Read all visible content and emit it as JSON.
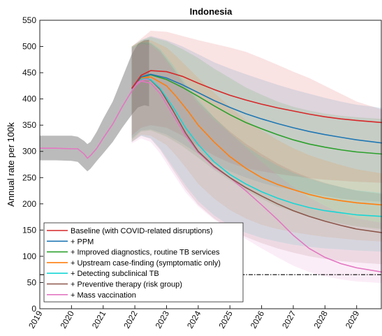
{
  "chart_data": {
    "type": "line",
    "title": "Indonesia",
    "xlabel": "",
    "ylabel": "Annual rate per 100k",
    "xlim": [
      2019,
      2029.8
    ],
    "ylim": [
      0,
      550
    ],
    "x_ticks": [
      "2019",
      "2020",
      "2021",
      "2022",
      "2023",
      "2024",
      "2025",
      "2026",
      "2027",
      "2028",
      "2029"
    ],
    "y_ticks": [
      0,
      50,
      100,
      150,
      200,
      250,
      300,
      350,
      400,
      450,
      500,
      550
    ],
    "grid": false,
    "legend_position": "bottom-left",
    "reference_line": {
      "y": 65,
      "style": "dash-dot",
      "color": "#000000"
    },
    "pre_period": {
      "x": [
        2019.0,
        2019.5,
        2020.0,
        2020.2,
        2020.4,
        2020.5,
        2020.6,
        2020.8,
        2021.0,
        2021.3,
        2021.6,
        2021.9,
        2022.1,
        2022.3,
        2022.45
      ],
      "y": [
        306,
        306,
        305,
        305,
        295,
        287,
        292,
        306,
        325,
        352,
        385,
        415,
        432,
        437,
        436
      ],
      "lower": [
        283,
        283,
        282,
        280,
        268,
        262,
        267,
        282,
        296,
        318,
        345,
        370,
        384,
        388,
        386
      ],
      "upper": [
        330,
        330,
        330,
        328,
        320,
        314,
        318,
        338,
        362,
        395,
        440,
        485,
        505,
        512,
        513
      ],
      "color": "#555555"
    },
    "series": [
      {
        "name": "Baseline (with COVID-related disruptions)",
        "color": "#d62728",
        "x": [
          2021.9,
          2022.2,
          2022.5,
          2023,
          2023.5,
          2024,
          2024.5,
          2025,
          2025.5,
          2026,
          2026.5,
          2027,
          2027.5,
          2028,
          2028.5,
          2029,
          2029.8
        ],
        "y": [
          420,
          445,
          454,
          452,
          443,
          430,
          418,
          407,
          398,
          390,
          383,
          377,
          371,
          366,
          362,
          359,
          355
        ],
        "lower": [
          330,
          345,
          350,
          345,
          330,
          310,
          292,
          278,
          268,
          262,
          257,
          253,
          249,
          246,
          244,
          242,
          240
        ],
        "upper": [
          500,
          515,
          530,
          528,
          520,
          512,
          505,
          498,
          490,
          478,
          465,
          452,
          440,
          425,
          410,
          395,
          380
        ]
      },
      {
        "name": "+ PPM",
        "color": "#1f77b4",
        "x": [
          2021.9,
          2022.2,
          2022.5,
          2023,
          2023.5,
          2024,
          2024.5,
          2025,
          2025.5,
          2026,
          2026.5,
          2027,
          2027.5,
          2028,
          2028.5,
          2029,
          2029.8
        ],
        "y": [
          420,
          442,
          447,
          440,
          427,
          412,
          397,
          384,
          372,
          362,
          353,
          345,
          338,
          332,
          327,
          322,
          316
        ],
        "lower": [
          325,
          340,
          342,
          332,
          315,
          295,
          278,
          262,
          250,
          240,
          232,
          226,
          220,
          215,
          210,
          207,
          204
        ],
        "upper": [
          500,
          512,
          520,
          512,
          500,
          485,
          470,
          458,
          447,
          437,
          427,
          418,
          410,
          402,
          395,
          389,
          383
        ]
      },
      {
        "name": "+ Improved diagnostics, routine TB services",
        "color": "#2ca02c",
        "x": [
          2021.9,
          2022.2,
          2022.5,
          2023,
          2023.5,
          2024,
          2024.5,
          2025,
          2025.5,
          2026,
          2026.5,
          2027,
          2027.5,
          2028,
          2028.5,
          2029,
          2029.8
        ],
        "y": [
          420,
          442,
          446,
          437,
          422,
          405,
          387,
          370,
          355,
          343,
          332,
          322,
          314,
          308,
          303,
          299,
          295
        ],
        "lower": [
          322,
          338,
          340,
          328,
          310,
          288,
          265,
          245,
          225,
          210,
          195,
          185,
          175,
          168,
          162,
          157,
          152
        ],
        "upper": [
          500,
          512,
          518,
          510,
          495,
          478,
          458,
          440,
          422,
          408,
          395,
          385,
          378,
          372,
          368,
          365,
          362
        ]
      },
      {
        "name": "+ Upstream case-finding (symptomatic only)",
        "color": "#ff7f0e",
        "x": [
          2021.9,
          2022.2,
          2022.5,
          2023,
          2023.3,
          2023.7,
          2024,
          2024.5,
          2025,
          2025.5,
          2026,
          2026.5,
          2027,
          2027.5,
          2028,
          2028.5,
          2029,
          2029.8
        ],
        "y": [
          420,
          440,
          442,
          425,
          405,
          375,
          350,
          318,
          290,
          268,
          250,
          237,
          227,
          218,
          211,
          206,
          202,
          198
        ],
        "lower": [
          318,
          332,
          330,
          312,
          292,
          262,
          238,
          210,
          188,
          172,
          160,
          152,
          146,
          141,
          137,
          134,
          131,
          128
        ],
        "upper": [
          500,
          510,
          512,
          498,
          482,
          458,
          440,
          412,
          385,
          360,
          340,
          322,
          306,
          293,
          283,
          274,
          266,
          258
        ]
      },
      {
        "name": "+ Detecting subclinical TB",
        "color": "#17d6d6",
        "x": [
          2021.9,
          2022.2,
          2022.5,
          2022.8,
          2023.2,
          2023.6,
          2024,
          2024.5,
          2025,
          2025.5,
          2026,
          2026.5,
          2027,
          2027.5,
          2028,
          2028.5,
          2029,
          2029.8
        ],
        "y": [
          420,
          438,
          437,
          420,
          385,
          345,
          313,
          280,
          256,
          238,
          223,
          211,
          201,
          193,
          187,
          183,
          179,
          176
        ],
        "lower": [
          318,
          330,
          325,
          305,
          270,
          235,
          205,
          178,
          158,
          145,
          135,
          128,
          122,
          118,
          115,
          113,
          111,
          109
        ],
        "upper": [
          498,
          508,
          508,
          495,
          465,
          430,
          400,
          365,
          335,
          310,
          290,
          273,
          259,
          248,
          239,
          232,
          226,
          221
        ]
      },
      {
        "name": "+ Preventive therapy (risk group)",
        "color": "#8c564b",
        "x": [
          2021.9,
          2022.2,
          2022.5,
          2022.8,
          2023.2,
          2023.6,
          2024,
          2024.5,
          2025,
          2025.5,
          2026,
          2026.5,
          2027,
          2027.5,
          2028,
          2028.5,
          2029,
          2029.8
        ],
        "y": [
          420,
          438,
          436,
          418,
          378,
          335,
          300,
          272,
          250,
          231,
          215,
          200,
          187,
          176,
          167,
          159,
          152,
          145
        ],
        "lower": [
          318,
          330,
          324,
          303,
          265,
          228,
          198,
          172,
          152,
          137,
          125,
          115,
          107,
          100,
          95,
          91,
          88,
          85
        ],
        "upper": [
          498,
          508,
          506,
          492,
          460,
          425,
          395,
          365,
          338,
          315,
          295,
          277,
          262,
          250,
          240,
          232,
          225,
          219
        ]
      },
      {
        "name": "+ Mass vaccination",
        "color": "#e377c2",
        "x": [
          2021.9,
          2022.2,
          2022.5,
          2022.8,
          2023.2,
          2023.6,
          2024,
          2024.5,
          2025,
          2025.5,
          2026,
          2026.5,
          2027,
          2027.5,
          2028,
          2028.5,
          2029,
          2029.8
        ],
        "y": [
          420,
          434,
          430,
          410,
          370,
          330,
          298,
          270,
          250,
          225,
          198,
          170,
          140,
          115,
          98,
          86,
          78,
          70
        ],
        "lower": [
          315,
          325,
          318,
          296,
          258,
          222,
          195,
          170,
          152,
          133,
          115,
          98,
          82,
          70,
          62,
          56,
          52,
          49
        ],
        "upper": [
          495,
          505,
          502,
          488,
          455,
          420,
          390,
          360,
          335,
          307,
          280,
          255,
          232,
          212,
          196,
          182,
          172,
          164
        ]
      }
    ]
  }
}
